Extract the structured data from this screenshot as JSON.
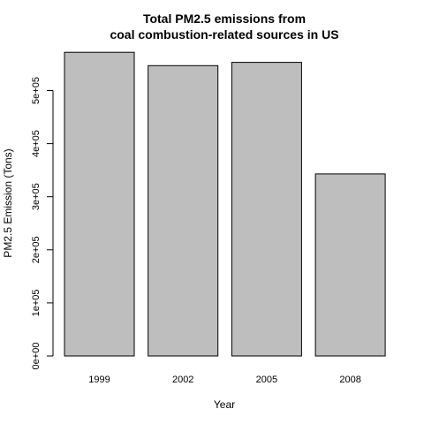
{
  "chart_data": {
    "type": "bar",
    "title": [
      "Total PM2.5 emissions from",
      "coal combustion-related sources in US"
    ],
    "xlabel": "Year",
    "ylabel": "PM2.5 Emission (Tons)",
    "categories": [
      "1999",
      "2002",
      "2005",
      "2008"
    ],
    "values": [
      572000,
      547000,
      553000,
      343000
    ],
    "ylim": [
      0,
      600000
    ],
    "yticks": [
      0,
      100000,
      200000,
      300000,
      400000,
      500000
    ],
    "ytick_labels": [
      "0e+00",
      "1e+05",
      "2e+05",
      "3e+05",
      "4e+05",
      "5e+05"
    ],
    "bar_color": "#bebebe",
    "bar_edge_color": "#000000",
    "grid": false,
    "legend": "none"
  }
}
